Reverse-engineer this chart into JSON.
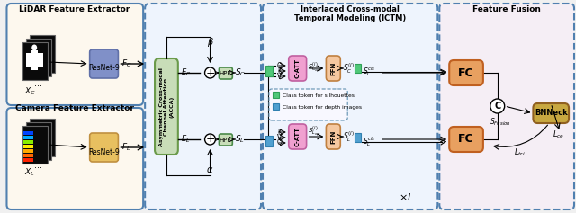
{
  "bg_color": "#f0f0f0",
  "section1_title": "LiDAR Feature Extractor",
  "section2_title": "Camera Feature Extractor",
  "section3_title": "Interlaced Cross-modal\nTemporal Modeling (ICTM)",
  "section4_title": "Feature Fusion",
  "acca_color": "#c8ddb8",
  "acca_border": "#6a9a4a",
  "hpp_color": "#c8ddb8",
  "hpp_border": "#4a8a4a",
  "catt_color": "#f0a0d0",
  "catt_border": "#c060a0",
  "ffn_color": "#f5c8a0",
  "ffn_border": "#c08040",
  "fc_color": "#e8a060",
  "fc_border": "#c06020",
  "bnneck_color": "#c8a840",
  "bnneck_border": "#906020",
  "legend_green": "#50c878",
  "legend_blue": "#50a0d0",
  "dashed_border_color": "#5080b0"
}
